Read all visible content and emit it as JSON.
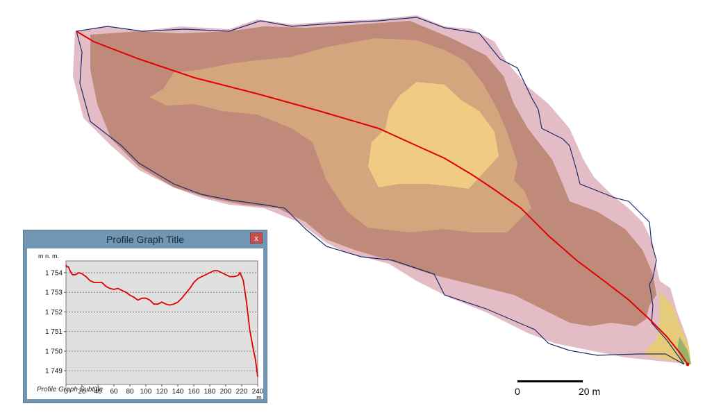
{
  "map": {
    "scale_labels": [
      "0",
      "20 m"
    ],
    "colors": {
      "outer": "#e3bcc5",
      "zone1": "#c08a7b",
      "zone2": "#d5a67d",
      "zone3": "#f0cb84",
      "profile_line": "#e00000",
      "boundary": "#1c2a6a"
    }
  },
  "profile_window": {
    "title": "Profile Graph Title",
    "close_label": "x",
    "subtitle": "Profile Graph Subtitle",
    "y_unit": "m n. m.",
    "x_unit": "m"
  },
  "chart_data": {
    "type": "line",
    "title": "Profile Graph Title",
    "subtitle": "Profile Graph Subtitle",
    "ylabel": "m n. m.",
    "xlabel": "m",
    "xlim": [
      0,
      240
    ],
    "ylim": [
      1748.3,
      1754.6
    ],
    "xticks": [
      0,
      20,
      40,
      60,
      80,
      100,
      120,
      140,
      160,
      180,
      200,
      220,
      240
    ],
    "xtick_labels": [
      "0",
      "20",
      "40",
      "60",
      "80",
      "100",
      "120",
      "140",
      "160",
      "180",
      "200",
      "220",
      "240"
    ],
    "yticks": [
      1749,
      1750,
      1751,
      1752,
      1753,
      1754
    ],
    "ytick_labels": [
      "1 749",
      "1 750",
      "1 751",
      "1 752",
      "1 753",
      "1 754"
    ],
    "grid": true,
    "series": [
      {
        "color": "#e00000",
        "x": [
          0,
          1,
          3,
          5,
          8,
          12,
          16,
          20,
          25,
          30,
          35,
          40,
          45,
          50,
          55,
          60,
          65,
          70,
          75,
          80,
          85,
          90,
          95,
          100,
          105,
          110,
          115,
          120,
          125,
          130,
          135,
          140,
          145,
          150,
          155,
          160,
          165,
          170,
          175,
          180,
          185,
          190,
          195,
          200,
          205,
          210,
          215,
          218,
          222,
          226,
          230,
          234,
          237,
          239,
          240
        ],
        "y": [
          1754.4,
          1754.3,
          1754.3,
          1754.1,
          1753.9,
          1753.9,
          1754.0,
          1753.95,
          1753.8,
          1753.6,
          1753.5,
          1753.5,
          1753.5,
          1753.3,
          1753.2,
          1753.15,
          1753.2,
          1753.1,
          1753.0,
          1752.85,
          1752.75,
          1752.6,
          1752.7,
          1752.7,
          1752.6,
          1752.4,
          1752.4,
          1752.5,
          1752.4,
          1752.35,
          1752.4,
          1752.5,
          1752.7,
          1752.95,
          1753.2,
          1753.5,
          1753.7,
          1753.8,
          1753.9,
          1754.0,
          1754.1,
          1754.1,
          1754.0,
          1753.9,
          1753.8,
          1753.8,
          1753.85,
          1754.0,
          1753.6,
          1752.5,
          1751.1,
          1750.2,
          1749.6,
          1749.0,
          1748.7
        ]
      }
    ]
  }
}
